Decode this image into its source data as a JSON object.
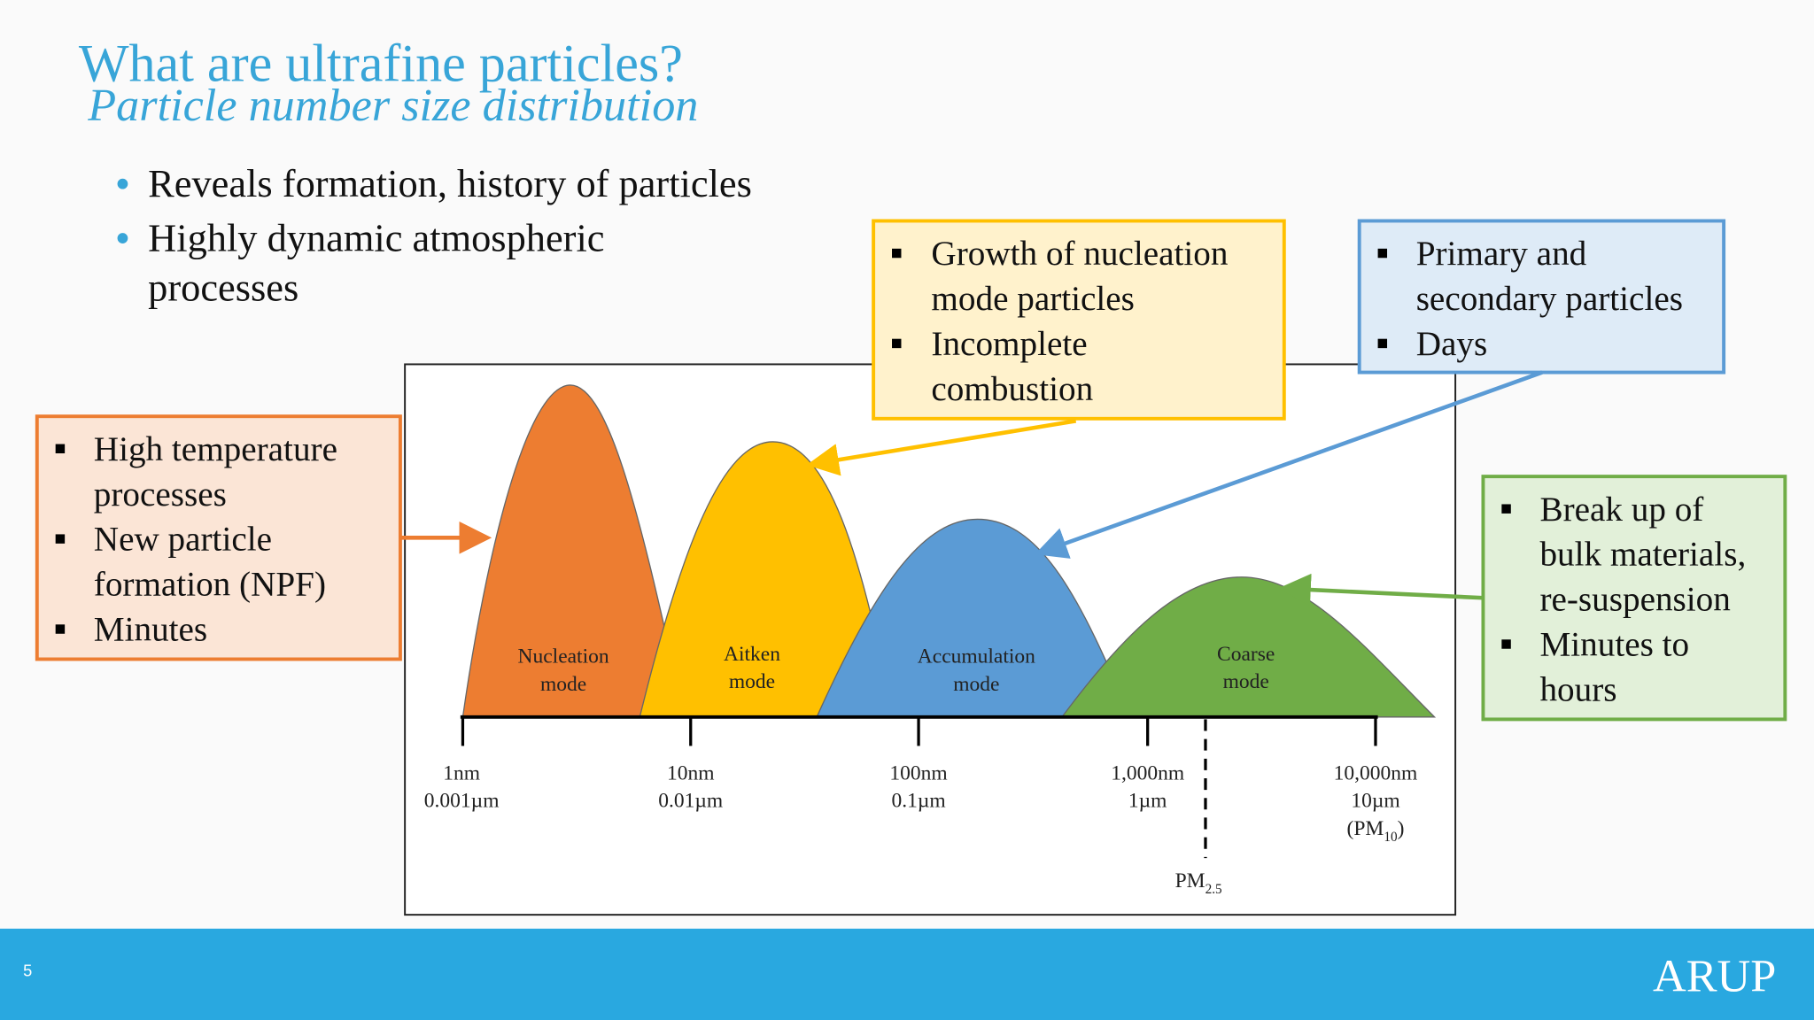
{
  "header": {
    "title": "What are ultrafine particles?",
    "subtitle": "Particle number size distribution"
  },
  "bullets": [
    [
      "Reveals formation, history of particles"
    ],
    [
      "Highly dynamic atmospheric",
      "processes"
    ]
  ],
  "callouts": {
    "aitken": [
      [
        "Growth of nucleation",
        "mode particles"
      ],
      [
        "Incomplete",
        "combustion"
      ]
    ],
    "accumulation": [
      [
        "Primary and",
        "secondary particles"
      ],
      [
        "Days"
      ]
    ],
    "nucleation": [
      [
        "High temperature",
        "processes"
      ],
      [
        "New particle",
        "formation (NPF)"
      ],
      [
        "Minutes"
      ]
    ],
    "coarse": [
      [
        "Break up of",
        "bulk materials,",
        "re-suspension"
      ],
      [
        "Minutes to",
        "hours"
      ]
    ]
  },
  "modes": [
    [
      "Nucleation",
      "mode"
    ],
    [
      "Aitken",
      "mode"
    ],
    [
      "Accumulation",
      "mode"
    ],
    [
      "Coarse",
      "mode"
    ]
  ],
  "axis_ticks": [
    [
      "1nm",
      "0.001µm"
    ],
    [
      "10nm",
      "0.01µm"
    ],
    [
      "100nm",
      "0.1µm"
    ],
    [
      "1,000nm",
      "1µm"
    ],
    [
      "10,000nm",
      "10µm",
      {
        "text": "(PM",
        "sub": "10",
        "after": ")"
      }
    ]
  ],
  "pm25_label": {
    "text": "PM",
    "sub": "2.5"
  },
  "footer": {
    "slide_number": "5",
    "logo": "ARUP"
  }
}
